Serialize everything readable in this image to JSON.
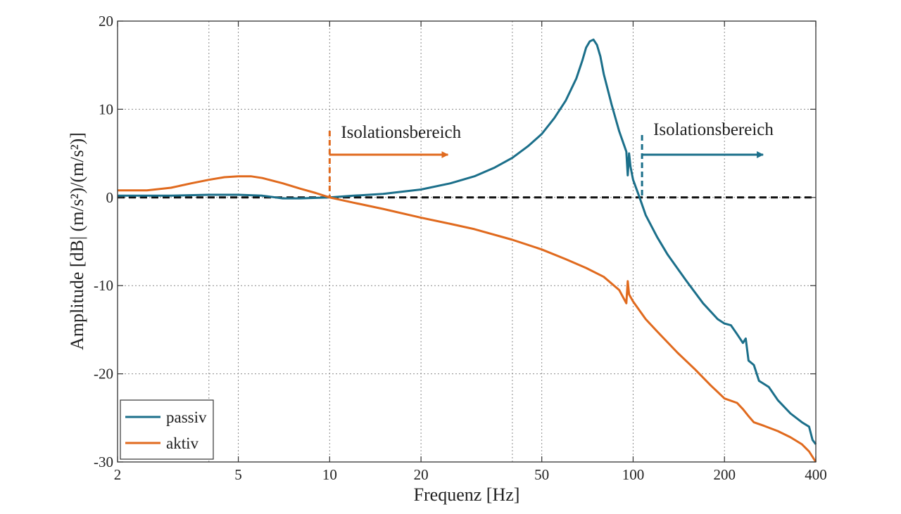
{
  "chart_data": {
    "type": "line",
    "title": "",
    "xlabel": "Frequenz [Hz]",
    "ylabel": "Amplitude [dB| (m/s²)/(m/s²)]",
    "xscale": "log",
    "xlim": [
      2,
      400
    ],
    "ylim": [
      -30,
      20
    ],
    "xticks": [
      2,
      5,
      10,
      20,
      50,
      100,
      200,
      400
    ],
    "xtick_labels": [
      "2",
      "5",
      "10",
      "20",
      "50",
      "100",
      "200",
      "400"
    ],
    "yticks": [
      -30,
      -20,
      -10,
      0,
      10,
      20
    ],
    "ytick_labels": [
      "-30",
      "-20",
      "-10",
      "0",
      "10",
      "20"
    ],
    "grid": true,
    "legend_position": "bottom-left",
    "reference_line": {
      "y": 0,
      "style": "dashed",
      "color": "#111111"
    },
    "series": [
      {
        "name": "passiv",
        "color": "#1b6f8a",
        "x": [
          2,
          3,
          4,
          5,
          6,
          7,
          8,
          10,
          12,
          15,
          20,
          25,
          30,
          35,
          40,
          45,
          50,
          55,
          60,
          65,
          68,
          70,
          72,
          74,
          76,
          78,
          80,
          85,
          90,
          95,
          96,
          97,
          98,
          100,
          105,
          110,
          120,
          130,
          150,
          170,
          190,
          200,
          210,
          220,
          230,
          235,
          240,
          250,
          260,
          280,
          300,
          330,
          360,
          380,
          390,
          400
        ],
        "y": [
          0.2,
          0.2,
          0.3,
          0.3,
          0.2,
          -0.1,
          -0.1,
          0.0,
          0.2,
          0.4,
          0.9,
          1.6,
          2.4,
          3.4,
          4.5,
          5.8,
          7.2,
          9.0,
          11.0,
          13.5,
          15.5,
          17.0,
          17.7,
          17.9,
          17.3,
          16.0,
          14.0,
          10.5,
          7.5,
          5.2,
          2.5,
          5.0,
          3.5,
          2.0,
          0.0,
          -2.0,
          -4.5,
          -6.5,
          -9.5,
          -12.0,
          -13.8,
          -14.3,
          -14.5,
          -15.5,
          -16.5,
          -16.0,
          -18.5,
          -19.0,
          -20.8,
          -21.5,
          -23.0,
          -24.5,
          -25.5,
          -26.0,
          -27.5,
          -28.0
        ]
      },
      {
        "name": "aktiv",
        "color": "#e06a1e",
        "x": [
          2,
          2.5,
          3,
          3.5,
          4,
          4.5,
          5,
          5.5,
          6,
          7,
          8,
          9,
          10,
          12,
          15,
          20,
          25,
          30,
          40,
          50,
          60,
          70,
          80,
          90,
          95,
          96,
          97,
          100,
          110,
          120,
          140,
          160,
          180,
          200,
          220,
          230,
          240,
          250,
          270,
          300,
          330,
          360,
          380,
          400
        ],
        "y": [
          0.8,
          0.8,
          1.1,
          1.6,
          2.0,
          2.3,
          2.4,
          2.4,
          2.2,
          1.6,
          1.0,
          0.5,
          0.0,
          -0.6,
          -1.3,
          -2.3,
          -3.0,
          -3.6,
          -4.8,
          -5.9,
          -7.0,
          -8.0,
          -9.0,
          -10.5,
          -12.0,
          -9.5,
          -11.0,
          -11.8,
          -13.8,
          -15.2,
          -17.6,
          -19.5,
          -21.3,
          -22.8,
          -23.3,
          -24.0,
          -24.8,
          -25.5,
          -25.9,
          -26.5,
          -27.2,
          -28.0,
          -28.8,
          -30.0
        ]
      }
    ],
    "annotations": [
      {
        "text": "Isolationsbereich",
        "x_marker": 10,
        "color": "#e06a1e"
      },
      {
        "text": "Isolationsbereich",
        "x_marker": 107,
        "color": "#1b6f8a"
      }
    ]
  }
}
